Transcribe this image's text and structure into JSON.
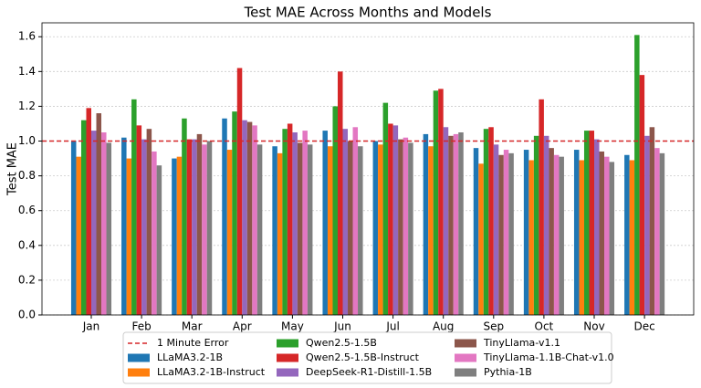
{
  "chart_data": {
    "type": "bar",
    "title": "Test MAE Across Months and Models",
    "y_label": "Test MAE",
    "categories": [
      "Jan",
      "Feb",
      "Mar",
      "Apr",
      "May",
      "Jun",
      "Jul",
      "Aug",
      "Sep",
      "Oct",
      "Nov",
      "Dec"
    ],
    "series": [
      {
        "name": "LLaMA3.2-1B",
        "color": "#1f77b4",
        "values": [
          1.0,
          1.02,
          0.9,
          1.13,
          0.97,
          1.06,
          1.0,
          1.04,
          0.96,
          0.95,
          0.95,
          0.92
        ]
      },
      {
        "name": "LLaMA3.2-1B-Instruct",
        "color": "#ff7f0e",
        "values": [
          0.91,
          0.9,
          0.91,
          0.95,
          0.93,
          0.97,
          0.98,
          0.97,
          0.87,
          0.89,
          0.89,
          0.89
        ]
      },
      {
        "name": "Qwen2.5-1.5B",
        "color": "#2ca02c",
        "values": [
          1.12,
          1.24,
          1.13,
          1.17,
          1.07,
          1.2,
          1.22,
          1.29,
          1.07,
          1.03,
          1.06,
          1.61
        ]
      },
      {
        "name": "Qwen2.5-1.5B-Instruct",
        "color": "#d62728",
        "values": [
          1.19,
          1.09,
          1.01,
          1.42,
          1.1,
          1.4,
          1.1,
          1.3,
          1.08,
          1.24,
          1.06,
          1.38
        ]
      },
      {
        "name": "DeepSeek-R1-Distill-1.5B",
        "color": "#9467bd",
        "values": [
          1.06,
          1.01,
          1.01,
          1.12,
          1.05,
          1.07,
          1.09,
          1.08,
          0.98,
          1.03,
          1.01,
          1.03
        ]
      },
      {
        "name": "TinyLlama-v1.1",
        "color": "#8c564b",
        "values": [
          1.16,
          1.07,
          1.04,
          1.11,
          0.99,
          1.0,
          1.01,
          1.03,
          0.92,
          0.96,
          0.94,
          1.08
        ]
      },
      {
        "name": "TinyLlama-1.1B-Chat-v1.0",
        "color": "#e377c2",
        "values": [
          1.05,
          0.94,
          0.98,
          1.09,
          1.06,
          1.08,
          1.02,
          1.04,
          0.95,
          0.92,
          0.91,
          0.96
        ]
      },
      {
        "name": "Pythia-1B",
        "color": "#7f7f7f",
        "values": [
          0.99,
          0.86,
          1.0,
          0.98,
          0.98,
          0.97,
          0.99,
          1.05,
          0.93,
          0.91,
          0.88,
          0.93
        ]
      }
    ],
    "reference_line": {
      "value": 1.0,
      "label": "1 Minute Error",
      "color": "#d62728"
    },
    "ylim": [
      0,
      1.68
    ],
    "yticks": [
      {
        "value": 0,
        "label": "0.0"
      },
      {
        "value": 0.2,
        "label": "0.2"
      },
      {
        "value": 0.4,
        "label": "0.4"
      },
      {
        "value": 0.6,
        "label": "0.6"
      },
      {
        "value": 0.8,
        "label": "0.8"
      },
      {
        "value": 1.0,
        "label": "1.0"
      },
      {
        "value": 1.2,
        "label": "1.2"
      },
      {
        "value": 1.4,
        "label": "1.4"
      },
      {
        "value": 1.6,
        "label": "1.6"
      }
    ],
    "grid": true,
    "legend": "bottom"
  }
}
